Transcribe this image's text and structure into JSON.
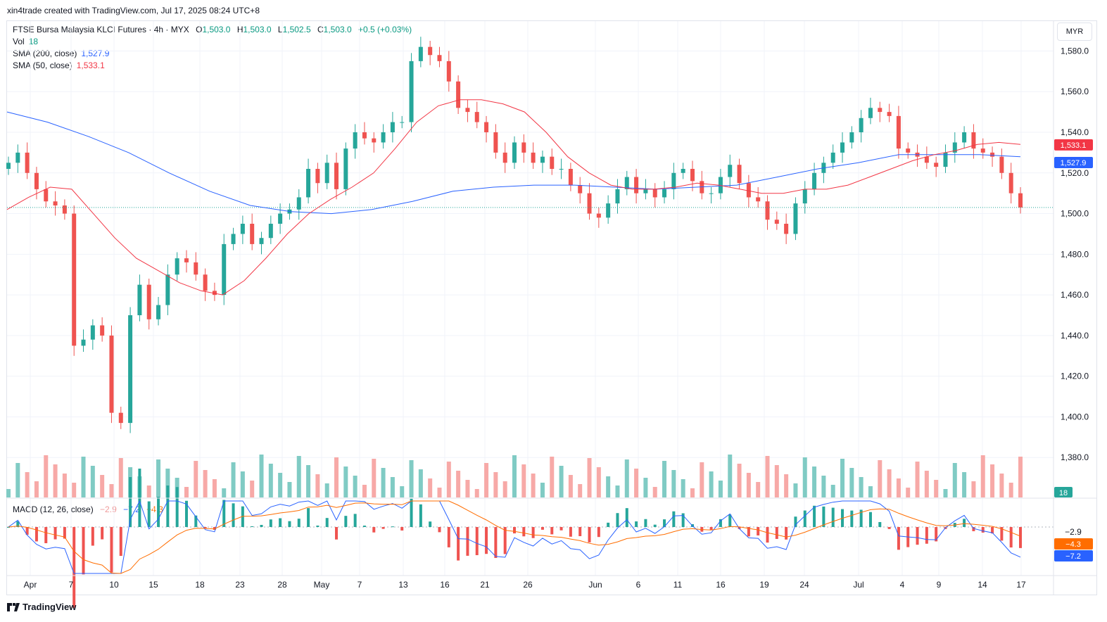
{
  "attribution": "xin4trade created with TradingView.com, Jul 17, 2025 08:24 UTC+8",
  "currency_button": "MYR",
  "brand": "TradingView",
  "legend": {
    "symbol": "FTSE Bursa Malaysia KLCI Futures · 4h · MYX",
    "o_label": "O",
    "o_value": "1,503.0",
    "h_label": "H",
    "h_value": "1,503.0",
    "l_label": "L",
    "l_value": "1,502.5",
    "c_label": "C",
    "c_value": "1,503.0",
    "change": "+0.5 (+0.03%)",
    "vol_label": "Vol",
    "vol_value": "18",
    "sma200_label": "SMA (200, close)",
    "sma200_value": "1,527.9",
    "sma50_label": "SMA (50, close)",
    "sma50_value": "1,533.1",
    "macd_label": "MACD (12, 26, close)",
    "macd_hist": "−2.9",
    "macd_line": "−7.2",
    "macd_signal": "−4.3"
  },
  "colors": {
    "up": "#26a69a",
    "down": "#ef5350",
    "sma200": "#2962ff",
    "sma50": "#f23645",
    "macd_line": "#2962ff",
    "macd_signal": "#ff6d00",
    "grid": "#f0f3fa"
  },
  "badges": {
    "sma50": "1,533.1",
    "sma200": "1,527.9",
    "volume": "18",
    "macd_hist": "−2.9",
    "macd_signal": "−4.3",
    "macd_line": "−7.2"
  },
  "chart_data": {
    "type": "candlestick",
    "title": "FTSE Bursa Malaysia KLCI Futures · 4h · MYX",
    "currency": "MYR",
    "price_axis": {
      "ticks": [
        "1,580.0",
        "1,560.0",
        "1,540.0",
        "1,520.0",
        "1,500.0",
        "1,480.0",
        "1,460.0",
        "1,440.0",
        "1,420.0",
        "1,400.0",
        "1,380.0"
      ],
      "range": [
        1360,
        1590
      ]
    },
    "time_axis": {
      "ticks": [
        "Apr",
        "7",
        "10",
        "15",
        "18",
        "23",
        "28",
        "May",
        "7",
        "13",
        "16",
        "21",
        "26",
        "Jun",
        "6",
        "11",
        "16",
        "19",
        "24",
        "Jul",
        "4",
        "9",
        "14",
        "17"
      ]
    },
    "last_price": 1503.0,
    "closes": [
      1525,
      1530,
      1520,
      1512,
      1506,
      1504,
      1500,
      1435,
      1438,
      1445,
      1440,
      1402,
      1397,
      1450,
      1465,
      1448,
      1455,
      1470,
      1478,
      1476,
      1470,
      1462,
      1460,
      1485,
      1490,
      1495,
      1485,
      1488,
      1495,
      1500,
      1502,
      1508,
      1522,
      1515,
      1525,
      1512,
      1532,
      1540,
      1537,
      1535,
      1540,
      1545,
      1545,
      1575,
      1582,
      1578,
      1575,
      1565,
      1552,
      1550,
      1545,
      1540,
      1530,
      1525,
      1535,
      1530,
      1525,
      1528,
      1522,
      1522,
      1514,
      1510,
      1500,
      1498,
      1505,
      1512,
      1518,
      1510,
      1512,
      1508,
      1512,
      1520,
      1522,
      1516,
      1510,
      1510,
      1518,
      1524,
      1515,
      1508,
      1506,
      1497,
      1495,
      1490,
      1505,
      1512,
      1520,
      1525,
      1530,
      1535,
      1540,
      1547,
      1552,
      1550,
      1548,
      1532,
      1530,
      1528,
      1525,
      1523,
      1530,
      1535,
      1540,
      1532,
      1530,
      1528,
      1520,
      1510,
      1503
    ],
    "sma50": [
      1502,
      1508,
      1513,
      1512,
      1500,
      1488,
      1478,
      1472,
      1466,
      1462,
      1460,
      1467,
      1478,
      1490,
      1500,
      1507,
      1513,
      1520,
      1532,
      1545,
      1553,
      1556,
      1556,
      1554,
      1550,
      1540,
      1528,
      1520,
      1514,
      1512,
      1512,
      1513,
      1515,
      1514,
      1512,
      1510,
      1510,
      1512,
      1512,
      1514,
      1518,
      1522,
      1526,
      1529,
      1531,
      1534,
      1535,
      1534
    ],
    "sma200": [
      1550,
      1545,
      1538,
      1530,
      1520,
      1511,
      1504,
      1501,
      1500,
      1502,
      1506,
      1511,
      1513,
      1514,
      1514,
      1513,
      1512,
      1513,
      1514,
      1518,
      1522,
      1525,
      1529,
      1529,
      1529,
      1528
    ],
    "volume_last": 18,
    "macd": {
      "macd": -7.2,
      "signal": -4.3,
      "histogram": -2.9
    }
  }
}
